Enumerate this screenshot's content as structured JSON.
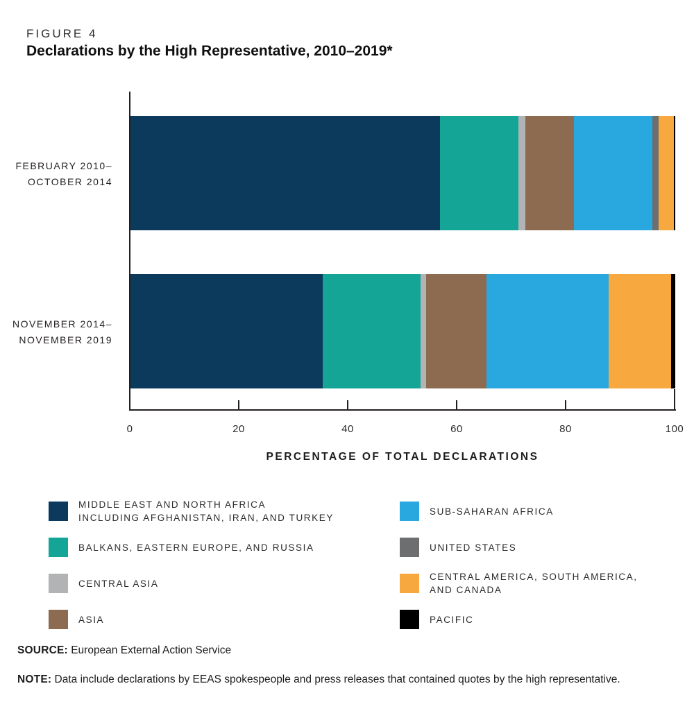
{
  "figure": {
    "label": "FIGURE 4",
    "title": "Declarations by the High Representative, 2010–2019*"
  },
  "chart_data": {
    "type": "bar",
    "orientation": "horizontal",
    "stacked": true,
    "title": "Declarations by the High Representative, 2010–2019*",
    "xlabel": "PERCENTAGE OF TOTAL DECLARATIONS",
    "ylabel": "",
    "xlim": [
      0,
      100
    ],
    "xticks": [
      0,
      20,
      40,
      60,
      80,
      100
    ],
    "grid": false,
    "legend_position": "below",
    "categories": [
      "FEBRUARY 2010–OCTOBER 2014",
      "NOVEMBER 2014–NOVEMBER 2019"
    ],
    "category_lines": [
      [
        "FEBRUARY 2010–",
        "OCTOBER 2014"
      ],
      [
        "NOVEMBER 2014–",
        "NOVEMBER 2019"
      ]
    ],
    "series": [
      {
        "name": "MIDDLE EAST AND NORTH AFRICA INCLUDING AFGHANISTAN, IRAN, AND TURKEY",
        "color": "#0c3a5c",
        "values": [
          56.8,
          35.3
        ]
      },
      {
        "name": "BALKANS, EASTERN EUROPE, AND RUSSIA",
        "color": "#15a597",
        "values": [
          14.4,
          18.0
        ]
      },
      {
        "name": "CENTRAL ASIA",
        "color": "#b1b3b5",
        "values": [
          1.3,
          1.0
        ]
      },
      {
        "name": "ASIA",
        "color": "#8c6b51",
        "values": [
          8.9,
          11.1
        ]
      },
      {
        "name": "SUB-SAHARAN AFRICA",
        "color": "#29a8e0",
        "values": [
          14.4,
          22.4
        ]
      },
      {
        "name": "UNITED STATES",
        "color": "#6c6e70",
        "values": [
          1.1,
          0
        ]
      },
      {
        "name": "CENTRAL AMERICA, SOUTH AMERICA, AND CANADA",
        "color": "#f7a83f",
        "values": [
          2.8,
          11.5
        ]
      },
      {
        "name": "PACIFIC",
        "color": "#000000",
        "values": [
          0.3,
          0.7
        ]
      }
    ]
  },
  "legend": {
    "columns": [
      {
        "items": [
          {
            "label_lines": [
              "MIDDLE EAST AND NORTH AFRICA",
              "INCLUDING AFGHANISTAN, IRAN, AND TURKEY"
            ],
            "color": "#0c3a5c"
          },
          {
            "label_lines": [
              "BALKANS, EASTERN EUROPE, AND RUSSIA"
            ],
            "color": "#15a597"
          },
          {
            "label_lines": [
              "CENTRAL ASIA"
            ],
            "color": "#b1b3b5"
          },
          {
            "label_lines": [
              "ASIA"
            ],
            "color": "#8c6b51"
          }
        ]
      },
      {
        "items": [
          {
            "label_lines": [
              "SUB-SAHARAN AFRICA"
            ],
            "color": "#29a8e0"
          },
          {
            "label_lines": [
              "UNITED STATES"
            ],
            "color": "#6c6e70"
          },
          {
            "label_lines": [
              "CENTRAL AMERICA, SOUTH AMERICA,",
              "AND CANADA"
            ],
            "color": "#f7a83f"
          },
          {
            "label_lines": [
              "PACIFIC"
            ],
            "color": "#000000"
          }
        ]
      }
    ]
  },
  "footer": {
    "source_label": "SOURCE:",
    "source_text": " European External Action Service",
    "note_label": "NOTE:",
    "note_text": " Data include declarations by EEAS spokespeople and press releases that contained quotes by the high representative."
  }
}
